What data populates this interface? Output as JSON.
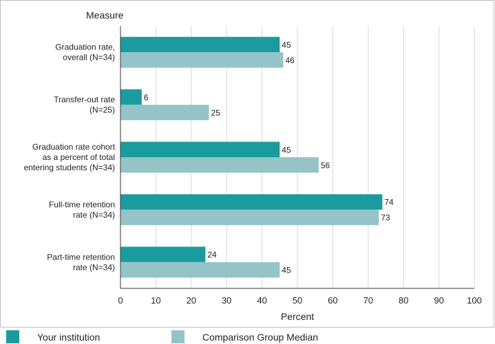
{
  "chart_data": {
    "type": "bar",
    "orientation": "horizontal",
    "title": "Measure",
    "xlabel": "Percent",
    "ylabel": "",
    "xlim": [
      0,
      100
    ],
    "xticks": [
      0,
      10,
      20,
      30,
      40,
      50,
      60,
      70,
      80,
      90,
      100
    ],
    "grid": "vertical",
    "legend_position": "bottom",
    "categories": [
      [
        "Graduation rate,",
        "overall (N=34)"
      ],
      [
        "Transfer-out rate",
        "(N=25)"
      ],
      [
        "Graduation rate cohort",
        "as a percent of total",
        "entering students (N=34)"
      ],
      [
        "Full-time retention",
        "rate (N=34)"
      ],
      [
        "Part-time retention",
        "rate (N=34)"
      ]
    ],
    "series": [
      {
        "name": "Your institution",
        "color": "#1a9c9e",
        "values": [
          45,
          6,
          45,
          74,
          24
        ]
      },
      {
        "name": "Comparison Group Median",
        "color": "#94c4c8",
        "values": [
          46,
          25,
          56,
          73,
          45
        ]
      }
    ]
  }
}
